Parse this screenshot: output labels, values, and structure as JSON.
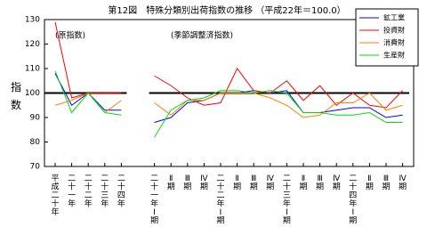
{
  "chart_data": {
    "type": "line",
    "title": "第12図　特殊分類別出荷指数の推移 （平成22年＝100.0）",
    "y_label": "指数",
    "panel_labels": [
      "(原指数)",
      "(季節調整済指数)"
    ],
    "categories": [
      "平成二十年",
      "二十一年",
      "二十二年",
      "二十三年",
      "二十四年",
      null,
      "二十一年Ⅰ期",
      "Ⅱ期",
      "Ⅲ期",
      "Ⅳ期",
      "二十二年Ⅰ期",
      "Ⅱ期",
      "Ⅲ期",
      "Ⅳ期",
      "二十三年Ⅰ期",
      "Ⅱ期",
      "Ⅲ期",
      "Ⅳ期",
      "二十四年Ⅰ期",
      "Ⅱ期",
      "Ⅲ期",
      "Ⅳ期"
    ],
    "series": [
      {
        "name": "鉱工業",
        "color": "#0000ff",
        "values": [
          108,
          95,
          100,
          93,
          93,
          null,
          88,
          90,
          96,
          97,
          100,
          100,
          101,
          100,
          101,
          92,
          92,
          93,
          94,
          94,
          90,
          91
        ]
      },
      {
        "name": "投資財",
        "color": "#ff0000",
        "values": [
          129,
          98,
          100,
          100,
          100,
          null,
          107,
          103,
          98,
          95,
          96,
          110,
          101,
          100,
          105,
          97,
          103,
          95,
          100,
          95,
          94,
          101
        ]
      },
      {
        "name": "消費財",
        "color": "#ff8000",
        "values": [
          95,
          97,
          100,
          92,
          97,
          null,
          96,
          91,
          97,
          97,
          100,
          100,
          100,
          98,
          95,
          90,
          91,
          96,
          96,
          100,
          93,
          95
        ]
      },
      {
        "name": "生産財",
        "color": "#00dd00",
        "values": [
          109,
          92,
          100,
          92,
          91,
          null,
          82,
          93,
          97,
          98,
          101,
          101,
          100,
          101,
          100,
          92,
          92,
          91,
          91,
          92,
          88,
          88
        ]
      }
    ],
    "reference_line": 100,
    "ylim": [
      70,
      130
    ],
    "yticks": [
      70,
      80,
      90,
      100,
      110,
      120,
      130
    ],
    "legend": "upper-right"
  }
}
